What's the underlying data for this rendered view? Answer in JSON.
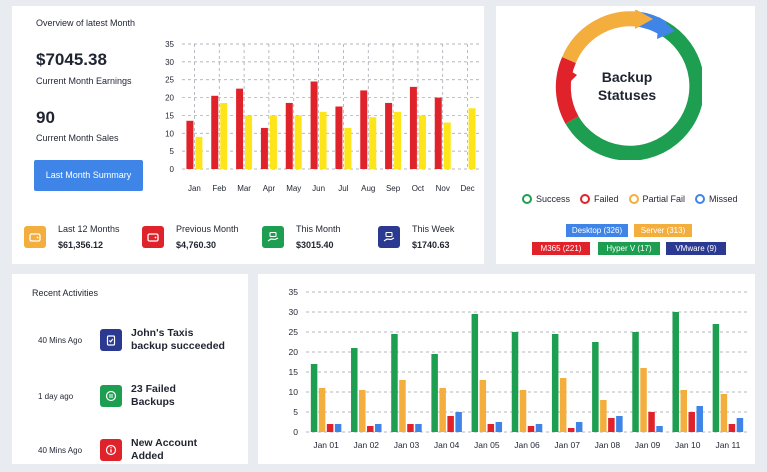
{
  "overview": {
    "title": "Overview of latest Month",
    "earnings_value": "$7045.38",
    "earnings_label": "Current Month Earnings",
    "sales_value": "90",
    "sales_label": "Current Month Sales",
    "button_label": "Last Month Summary"
  },
  "stats": [
    {
      "label": "Last 12 Months",
      "value": "$61,356.12",
      "color": "#f3ae3d",
      "icon": "wallet-icon"
    },
    {
      "label": "Previous Month",
      "value": "$4,760.30",
      "color": "#e0232b",
      "icon": "wallet-icon"
    },
    {
      "label": "This Month",
      "value": "$3015.40",
      "color": "#1e9e50",
      "icon": "money-hand-icon"
    },
    {
      "label": "This Week",
      "value": "$1740.63",
      "color": "#2b3990",
      "icon": "money-hand-icon"
    }
  ],
  "backup": {
    "title_line1": "Backup",
    "title_line2": "Statuses",
    "legend": [
      {
        "label": "Success",
        "color": "#1e9e50"
      },
      {
        "label": "Failed",
        "color": "#e0232b"
      },
      {
        "label": "Partial Fail",
        "color": "#f3ae3d"
      },
      {
        "label": "Missed",
        "color": "#3f85e8"
      }
    ],
    "tags": [
      {
        "label": "Desktop (326)",
        "color": "#3f85e8"
      },
      {
        "label": "Server (313)",
        "color": "#f3ae3d"
      },
      {
        "label": "M365 (221)",
        "color": "#e0232b"
      },
      {
        "label": "Hyper V (17)",
        "color": "#1e9e50"
      },
      {
        "label": "VMware (9)",
        "color": "#2b3990"
      }
    ]
  },
  "recent": {
    "title": "Recent Activities",
    "items": [
      {
        "time": "40 Mins Ago",
        "text_line1": "John's Taxis",
        "text_line2": "backup succeeded",
        "color": "#2b3990",
        "icon": "clipboard-check-icon"
      },
      {
        "time": "1 day ago",
        "text_line1": "23 Failed",
        "text_line2": "Backups",
        "color": "#1e9e50",
        "icon": "document-icon"
      },
      {
        "time": "40 Mins Ago",
        "text_line1": "New Account",
        "text_line2": "Added",
        "color": "#e0232b",
        "icon": "info-icon"
      }
    ]
  },
  "chart_data": [
    {
      "type": "bar",
      "categories": [
        "Jan",
        "Feb",
        "Mar",
        "Apr",
        "May",
        "Jun",
        "Jul",
        "Aug",
        "Sep",
        "Oct",
        "Nov",
        "Dec"
      ],
      "series": [
        {
          "color": "#e0232b",
          "values": [
            13.5,
            20.5,
            22.5,
            11.5,
            18.5,
            24.5,
            17.5,
            22,
            18.5,
            23,
            20,
            null
          ]
        },
        {
          "color": "#fde51a",
          "values": [
            9,
            18.5,
            15,
            15,
            15,
            16,
            11.5,
            14.5,
            16,
            15,
            13,
            17
          ]
        }
      ],
      "ylim": [
        0,
        35
      ],
      "yticks": [
        0,
        5,
        10,
        15,
        20,
        25,
        30,
        35
      ],
      "grid": true
    },
    {
      "type": "bar",
      "categories": [
        "Jan 01",
        "Jan 02",
        "Jan 03",
        "Jan 04",
        "Jan 05",
        "Jan 06",
        "Jan 07",
        "Jan 08",
        "Jan 09",
        "Jan 10",
        "Jan 11"
      ],
      "series": [
        {
          "color": "#1e9e50",
          "values": [
            17,
            21,
            24.5,
            19.5,
            29.5,
            25,
            24.5,
            22.5,
            25,
            30,
            27
          ]
        },
        {
          "color": "#f3ae3d",
          "values": [
            11,
            10.5,
            13,
            11,
            13,
            10.5,
            13.5,
            8,
            16,
            10.5,
            9.5
          ]
        },
        {
          "color": "#e0232b",
          "values": [
            2,
            1.5,
            2,
            4,
            2,
            1.5,
            1,
            3.5,
            5,
            5,
            2
          ]
        },
        {
          "color": "#3f85e8",
          "values": [
            2,
            2,
            2,
            5,
            2.5,
            2,
            2.5,
            4,
            1.5,
            6.5,
            3.5
          ]
        }
      ],
      "ylim": [
        0,
        35
      ],
      "yticks": [
        0,
        5,
        10,
        15,
        20,
        25,
        30,
        35
      ],
      "grid": true
    }
  ]
}
